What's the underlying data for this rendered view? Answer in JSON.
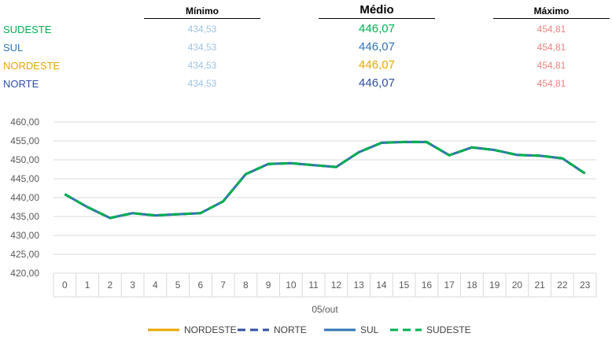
{
  "stats": {
    "headers": {
      "min": "Mínimo",
      "med": "Médio",
      "max": "Máximo"
    },
    "rows": [
      {
        "label": "SUDESTE",
        "color": "#00b050",
        "min": "434,53",
        "med": "446,07",
        "max": "454,81"
      },
      {
        "label": "SUL",
        "color": "#2e75b6",
        "min": "434,53",
        "med": "446,07",
        "max": "454,81"
      },
      {
        "label": "NORDESTE",
        "color": "#e6a800",
        "min": "434,53",
        "med": "446,07",
        "max": "454,81"
      },
      {
        "label": "NORTE",
        "color": "#2f4f9f",
        "min": "434,53",
        "med": "446,07",
        "max": "454,81"
      }
    ]
  },
  "chart_data": {
    "type": "line",
    "x": [
      0,
      1,
      2,
      3,
      4,
      5,
      6,
      7,
      8,
      9,
      10,
      11,
      12,
      13,
      14,
      15,
      16,
      17,
      18,
      19,
      20,
      21,
      22,
      23
    ],
    "xlabel": "05/out",
    "ylim": [
      420,
      460
    ],
    "yticks": [
      "420,00",
      "425,00",
      "430,00",
      "435,00",
      "440,00",
      "445,00",
      "450,00",
      "455,00",
      "460,00"
    ],
    "grid": true,
    "legend_position": "bottom",
    "series": [
      {
        "name": "NORDESTE",
        "color": "#e6a800",
        "style": "solid",
        "values": [
          440.9,
          437.5,
          434.6,
          435.9,
          435.3,
          435.6,
          435.9,
          439.0,
          446.2,
          448.9,
          449.1,
          448.6,
          448.1,
          452.0,
          454.5,
          454.7,
          454.7,
          451.2,
          453.3,
          452.6,
          451.3,
          451.1,
          450.4,
          446.4
        ]
      },
      {
        "name": "NORTE",
        "color": "#2f4f9f",
        "style": "dashed",
        "values": [
          440.9,
          437.5,
          434.6,
          435.9,
          435.3,
          435.6,
          435.9,
          439.0,
          446.2,
          448.9,
          449.1,
          448.6,
          448.1,
          452.0,
          454.5,
          454.7,
          454.7,
          451.2,
          453.3,
          452.6,
          451.3,
          451.1,
          450.4,
          446.4
        ]
      },
      {
        "name": "SUL",
        "color": "#2e75b6",
        "style": "solid",
        "values": [
          440.9,
          437.5,
          434.6,
          435.9,
          435.3,
          435.6,
          435.9,
          439.0,
          446.2,
          448.9,
          449.1,
          448.6,
          448.1,
          452.0,
          454.5,
          454.7,
          454.7,
          451.2,
          453.3,
          452.6,
          451.3,
          451.1,
          450.4,
          446.4
        ]
      },
      {
        "name": "SUDESTE",
        "color": "#00b050",
        "style": "dashed",
        "values": [
          440.9,
          437.5,
          434.6,
          435.9,
          435.3,
          435.6,
          435.9,
          439.0,
          446.2,
          448.9,
          449.1,
          448.6,
          448.1,
          452.0,
          454.5,
          454.7,
          454.7,
          451.2,
          453.3,
          452.6,
          451.3,
          451.1,
          450.4,
          446.4
        ]
      }
    ]
  }
}
